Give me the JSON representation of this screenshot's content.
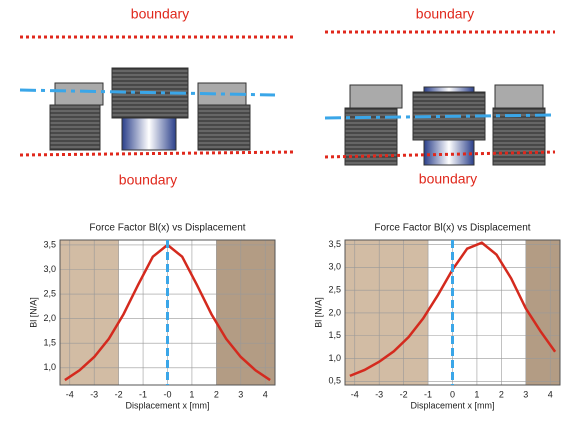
{
  "diagrams": [
    {
      "top_label": "boundary",
      "bottom_label": "boundary"
    },
    {
      "top_label": "boundary",
      "bottom_label": "boundary"
    }
  ],
  "chart_data": [
    {
      "type": "line",
      "title": "Force Factor Bl(x) vs Displacement",
      "x_label": "Displacement  x [mm]",
      "y_label": "Bl  [N/A]",
      "x": [
        -4.2,
        -3.6,
        -3.0,
        -2.4,
        -1.8,
        -1.2,
        -0.6,
        0,
        0.6,
        1.2,
        1.8,
        2.4,
        3.0,
        3.6,
        4.2
      ],
      "series": [
        {
          "color": "#d42a1e",
          "values": [
            0.75,
            0.95,
            1.22,
            1.59,
            2.09,
            2.69,
            3.26,
            3.5,
            3.26,
            2.69,
            2.09,
            1.59,
            1.22,
            0.95,
            0.75
          ]
        }
      ],
      "xlim": [
        -4.4,
        4.4
      ],
      "ylim": [
        0.65,
        3.6
      ],
      "xticks": [
        -4,
        -3,
        -2,
        -1,
        {
          "value": 0,
          "label": "-0"
        },
        1,
        2,
        3,
        4
      ],
      "yticks": [
        {
          "value": 1.0,
          "label": "1,0"
        },
        {
          "value": 1.5,
          "label": "1,5"
        },
        {
          "value": 2.0,
          "label": "2,0"
        },
        {
          "value": 2.5,
          "label": "2,5"
        },
        {
          "value": 3.0,
          "label": "3,0"
        },
        {
          "value": 3.5,
          "label": "3,5"
        }
      ],
      "grid": true,
      "regions": [
        {
          "from": -4.4,
          "to": -2,
          "color": "#d2bca4"
        },
        {
          "from": 2,
          "to": 4.4,
          "color": "#b39c84"
        }
      ],
      "marker_x": 0,
      "marker_color": "#3aa6e8"
    },
    {
      "type": "line",
      "title": "Force Factor Bl(x) vs Displacement",
      "x_label": "Displacement  x [mm]",
      "y_label": "Bl  [N/A]",
      "x": [
        -4.2,
        -3.6,
        -3.0,
        -2.4,
        -1.8,
        -1.2,
        -0.6,
        0,
        0.6,
        1.2,
        1.8,
        2.4,
        3.0,
        3.6,
        4.2
      ],
      "series": [
        {
          "color": "#d42a1e",
          "values": [
            0.62,
            0.75,
            0.93,
            1.16,
            1.47,
            1.88,
            2.39,
            2.95,
            3.41,
            3.54,
            3.28,
            2.76,
            2.1,
            1.6,
            1.15
          ]
        }
      ],
      "xlim": [
        -4.4,
        4.4
      ],
      "ylim": [
        0.42,
        3.6
      ],
      "xticks": [
        -4,
        -3,
        -2,
        -1,
        0,
        1,
        2,
        3,
        4
      ],
      "yticks": [
        {
          "value": 0.5,
          "label": "0,5"
        },
        {
          "value": 1.0,
          "label": "1,0"
        },
        {
          "value": 1.5,
          "label": "1,5"
        },
        {
          "value": 2.0,
          "label": "2,0"
        },
        {
          "value": 2.5,
          "label": "2,5"
        },
        {
          "value": 3.0,
          "label": "3,0"
        },
        {
          "value": 3.5,
          "label": "3,5"
        }
      ],
      "grid": true,
      "regions": [
        {
          "from": -4.4,
          "to": -1,
          "color": "#d2bca4"
        },
        {
          "from": 3,
          "to": 4.4,
          "color": "#b39c84"
        }
      ],
      "marker_x": 0,
      "marker_color": "#3aa6e8"
    }
  ]
}
